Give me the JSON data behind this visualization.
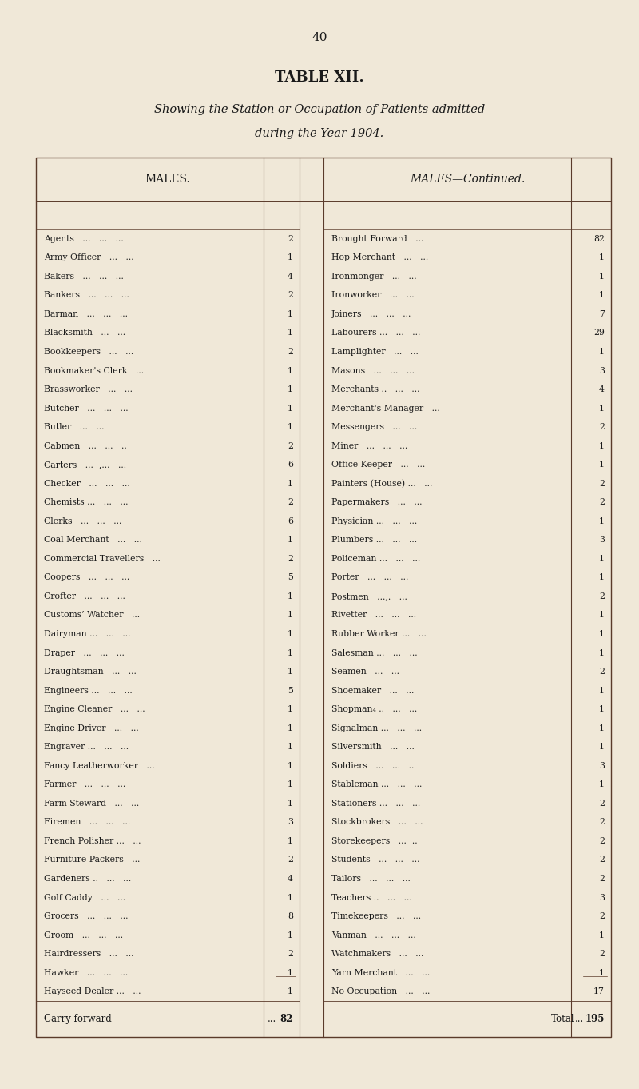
{
  "page_number": "40",
  "table_title": "TABLE XII.",
  "subtitle_line1": "Showing the Station or Occupation of Patients admitted",
  "subtitle_line2": "during the Year 1904.",
  "col1_header": "MALES.",
  "col2_header": "MALES—Continued.",
  "left_rows": [
    [
      "Agents",
      "...",
      "...",
      "...",
      "2"
    ],
    [
      "Army Officer",
      "...",
      "...",
      "",
      "1"
    ],
    [
      "Bakers",
      "...",
      "...",
      "...",
      "4"
    ],
    [
      "Bankers",
      "...",
      "...",
      "...",
      "2"
    ],
    [
      "Barman",
      "...",
      "...",
      "...",
      "1"
    ],
    [
      "Blacksmith",
      "...",
      "...",
      "",
      "1"
    ],
    [
      "Bookkeepers",
      "...",
      "...",
      "",
      "2"
    ],
    [
      "Bookmaker's Clerk",
      "...",
      "",
      "",
      "1"
    ],
    [
      "Brassworker",
      "...",
      "...",
      "",
      "1"
    ],
    [
      "Butcher",
      "...",
      "...",
      "...",
      "1"
    ],
    [
      "Butler",
      "...",
      "...",
      "",
      "1"
    ],
    [
      "Cabmen",
      "...",
      "...",
      "..",
      "2"
    ],
    [
      "Carters",
      "...",
      "...,",
      "...",
      "6"
    ],
    [
      "Checker",
      "...",
      "...",
      "...",
      "1"
    ],
    [
      "Chemists ...",
      "...",
      "...",
      "...̇",
      "2"
    ],
    [
      "Clerks",
      "...",
      "...",
      "...",
      "6"
    ],
    [
      "Coal Merchant",
      "...",
      "...",
      "",
      "1"
    ],
    [
      "Commercial Travellers",
      "...",
      "",
      "",
      "2"
    ],
    [
      "Coopers",
      "...",
      "...",
      "...",
      "5"
    ],
    [
      "Crofter",
      "...",
      "...",
      "...",
      "1"
    ],
    [
      "Customs’ Watcher",
      "...",
      "",
      "",
      "1"
    ],
    [
      "Dairyman ...",
      "...",
      "...",
      "",
      "1"
    ],
    [
      "Draper",
      "...",
      "...",
      "...",
      "1"
    ],
    [
      "Draughtsman",
      "...",
      "...",
      "",
      "1"
    ],
    [
      "Engineers ...",
      "...",
      "...",
      "",
      "5"
    ],
    [
      "Engine Cleaner",
      "...",
      "...",
      "",
      "1"
    ],
    [
      "Engine Driver",
      "...",
      "...",
      "",
      "1"
    ],
    [
      "Engraver ...",
      "...",
      "...",
      "",
      "1"
    ],
    [
      "Fancy Leatherworker",
      "...",
      "",
      "",
      "1"
    ],
    [
      "Farmer",
      "...",
      "...",
      "...",
      "1"
    ],
    [
      "Farm Steward",
      "...",
      "...",
      "",
      "1"
    ],
    [
      "Firemen",
      "...",
      "...",
      "...",
      "3"
    ],
    [
      "French Polisher ...",
      "...",
      "",
      "",
      "1"
    ],
    [
      "Furniture Packers",
      "...",
      "",
      "",
      "2"
    ],
    [
      "Gardeners ..",
      "...",
      "...",
      "",
      "4"
    ],
    [
      "Golf Caddy",
      "...",
      "...",
      "",
      "1"
    ],
    [
      "Grocers",
      "...",
      "...",
      "...",
      "8"
    ],
    [
      "Groom",
      "...",
      "...",
      "...",
      "1"
    ],
    [
      "Hairdressers",
      "...",
      "...",
      "",
      "2"
    ],
    [
      "Hawker",
      "...",
      "...",
      "...",
      "1"
    ],
    [
      "Hayseed Dealer ...",
      "...",
      "",
      "",
      "1"
    ]
  ],
  "right_rows": [
    [
      "Brought Forward",
      "...",
      "",
      "",
      "82"
    ],
    [
      "Hop Merchant",
      "...",
      "...",
      "",
      "1"
    ],
    [
      "Ironmonger",
      "...",
      "...",
      "",
      "1"
    ],
    [
      "Ironworker",
      "...",
      "...",
      "",
      "1"
    ],
    [
      "Joiners",
      "...",
      "...",
      "...",
      "7"
    ],
    [
      "Labourers ...",
      "...",
      "...",
      "",
      "29"
    ],
    [
      "Lamplighter",
      "...",
      "...",
      "",
      "1"
    ],
    [
      "Masons",
      "...",
      "...",
      "...",
      "3"
    ],
    [
      "Merchants ..",
      "...",
      "...",
      "",
      "4"
    ],
    [
      "Merchant's Manager",
      "...",
      "",
      "",
      "1"
    ],
    [
      "Messengers",
      "...",
      "...",
      "",
      "2"
    ],
    [
      "Miner",
      "...",
      "...",
      "...",
      "1"
    ],
    [
      "Office Keeper",
      "...",
      "...",
      "",
      "1"
    ],
    [
      "Painters (House) ...",
      "...",
      "",
      "",
      "2"
    ],
    [
      "Papermakers",
      "...",
      "...",
      "",
      "2"
    ],
    [
      "Physician ...",
      "...",
      "...",
      "",
      "1"
    ],
    [
      "Plumbers ...",
      "...",
      "...",
      "",
      "3"
    ],
    [
      "Policeman ...",
      "...",
      "...",
      "",
      "1"
    ],
    [
      "Porter",
      "...",
      "...",
      "...",
      "1"
    ],
    [
      "Postmen",
      "...,",
      "..",
      "...",
      "2"
    ],
    [
      "Rivetter",
      "...",
      "...",
      "...",
      "1"
    ],
    [
      "Rubber Worker ...",
      "...",
      "",
      "",
      "1"
    ],
    [
      "Salesman ...",
      "...",
      "...",
      "",
      "1"
    ],
    [
      "Seamen",
      "...",
      "...",
      "",
      "2"
    ],
    [
      "Shoemaker",
      "...",
      "...",
      "",
      "1"
    ],
    [
      "Shopman₄ ..",
      "...",
      "...",
      "",
      "1"
    ],
    [
      "Signalman ...",
      "...",
      "...",
      "",
      "1"
    ],
    [
      "Silversmith",
      "...",
      "...",
      "",
      "1"
    ],
    [
      "Soldiers",
      "...",
      "...",
      "..",
      "3"
    ],
    [
      "Stableman ...",
      "...",
      "...",
      "",
      "1"
    ],
    [
      "Stationers ...",
      "...",
      "...",
      "",
      "2"
    ],
    [
      "Stockbrokers",
      "...",
      "...",
      "",
      "2"
    ],
    [
      "Storekeepers",
      "...",
      "...",
      "..",
      "2"
    ],
    [
      "Students",
      "...",
      "...",
      "...",
      "2"
    ],
    [
      "Tailors",
      "...",
      "...",
      "...",
      "2"
    ],
    [
      "Teachers ..",
      "...",
      "...",
      "",
      "3"
    ],
    [
      "Timekeepers",
      "...",
      "...",
      "",
      "2"
    ],
    [
      "Vanman",
      "...",
      "...",
      "...",
      "1"
    ],
    [
      "Watchmakers",
      "...",
      "...",
      "",
      "2"
    ],
    [
      "Yarn Merchant",
      "...",
      "...",
      "",
      "1"
    ],
    [
      "No Occupation",
      "...",
      "...",
      "",
      "17"
    ]
  ],
  "carry_forward_label": "Carry forward",
  "carry_forward_dots": "...",
  "carry_forward_value": "82",
  "total_label": "Total",
  "total_dots": "...",
  "total_value": "195",
  "bg_color": "#f0e8d8",
  "text_color": "#1a1a1a",
  "line_color": "#5a3a2a"
}
